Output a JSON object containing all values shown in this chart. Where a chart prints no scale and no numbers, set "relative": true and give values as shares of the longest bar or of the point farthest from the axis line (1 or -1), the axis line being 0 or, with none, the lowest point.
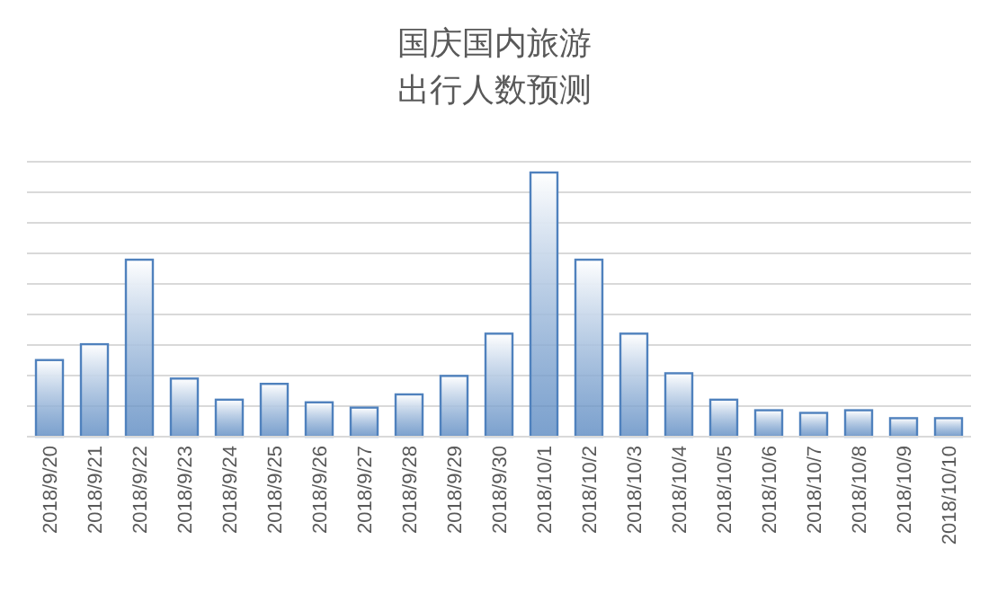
{
  "chart_data": {
    "type": "bar",
    "title": "国庆国内旅游",
    "subtitle": "出行人数预测",
    "relative": true,
    "grid": "y",
    "color": "#4f81bd",
    "categories": [
      "2018/9/20",
      "2018/9/21",
      "2018/9/22",
      "2018/9/23",
      "2018/9/24",
      "2018/9/25",
      "2018/9/26",
      "2018/9/27",
      "2018/9/28",
      "2018/9/29",
      "2018/9/30",
      "2018/10/1",
      "2018/10/2",
      "2018/10/3",
      "2018/10/4",
      "2018/10/5",
      "2018/10/6",
      "2018/10/7",
      "2018/10/8",
      "2018/10/9",
      "2018/10/10"
    ],
    "values": [
      0.29,
      0.35,
      0.67,
      0.22,
      0.14,
      0.2,
      0.13,
      0.11,
      0.16,
      0.23,
      0.39,
      1,
      0.67,
      0.39,
      0.24,
      0.14,
      0.1,
      0.09,
      0.1,
      0.07,
      0.07
    ]
  }
}
